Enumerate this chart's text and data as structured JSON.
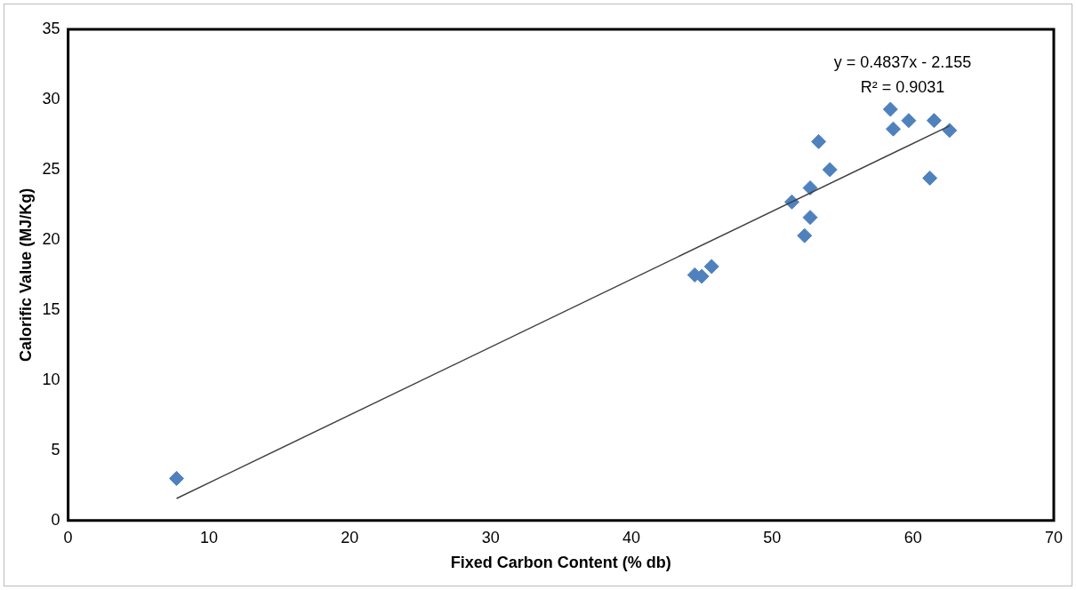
{
  "chart_data": {
    "type": "scatter",
    "xlabel": "Fixed Carbon Content (% db)",
    "ylabel": "Calorific Value (MJ/Kg)",
    "xlim": [
      0,
      70
    ],
    "xticks": [
      0,
      10,
      20,
      30,
      40,
      50,
      60,
      70
    ],
    "ylim": [
      0,
      35
    ],
    "yticks": [
      0,
      5,
      10,
      15,
      20,
      25,
      30,
      35
    ],
    "grid": false,
    "legend": false,
    "series": [
      {
        "marker": "diamond",
        "color": "#4f81bd",
        "x": [
          7.7,
          44.5,
          45.0,
          45.7,
          51.4,
          52.3,
          52.7,
          52.7,
          53.3,
          54.1,
          58.4,
          58.6,
          59.7,
          61.2,
          61.5,
          62.6
        ],
        "values": [
          3.0,
          17.5,
          17.4,
          18.1,
          22.7,
          20.3,
          21.6,
          23.7,
          27.0,
          25.0,
          29.3,
          27.9,
          28.5,
          24.4,
          28.5,
          27.8
        ]
      },
      {
        "type": "line",
        "marker": "none",
        "color": "#404040",
        "x": [
          7.7,
          62.6
        ],
        "values": [
          1.57,
          28.12
        ]
      }
    ],
    "annotations": [
      "y = 0.4837x - 2.155",
      "R² = 0.9031"
    ]
  }
}
